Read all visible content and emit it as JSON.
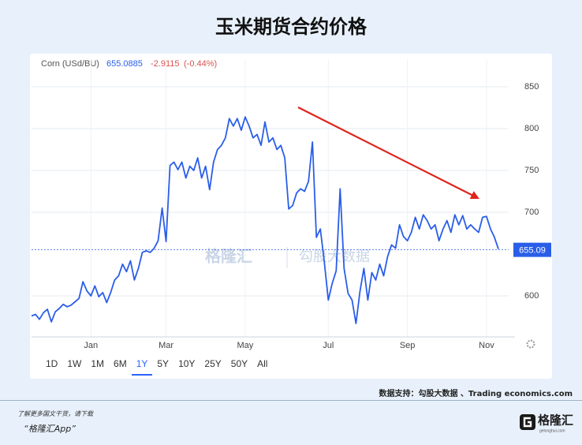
{
  "chart_data": {
    "type": "line",
    "title": "玉米期货合约价格",
    "header": {
      "name": "Corn (USd/BU)",
      "price": 655.0885,
      "change": -2.9115,
      "change_pct": {
        "value": -0.44,
        "label": "(-0.44%)"
      }
    },
    "categories": [
      null,
      null,
      null,
      null,
      null,
      null,
      null,
      null,
      null,
      null,
      null,
      null,
      null,
      null,
      null,
      "Jan",
      null,
      null,
      null,
      null,
      null,
      null,
      null,
      null,
      null,
      null,
      null,
      null,
      null,
      null,
      null,
      null,
      null,
      null,
      "Mar",
      null,
      null,
      null,
      null,
      null,
      null,
      null,
      null,
      null,
      null,
      null,
      null,
      null,
      null,
      null,
      null,
      null,
      null,
      null,
      "May",
      null,
      null,
      null,
      null,
      null,
      null,
      null,
      null,
      null,
      null,
      null,
      null,
      null,
      null,
      null,
      null,
      null,
      null,
      null,
      null,
      "Jul",
      null,
      null,
      null,
      null,
      null,
      null,
      null,
      null,
      null,
      null,
      null,
      null,
      null,
      null,
      null,
      null,
      null,
      null,
      null,
      "Sep",
      null,
      null,
      null,
      null,
      null,
      null,
      null,
      null,
      null,
      null,
      null,
      null,
      null,
      null,
      null,
      null,
      null,
      null,
      null,
      "Nov",
      null,
      null,
      null
    ],
    "values": [
      576,
      578,
      572,
      580,
      584,
      569,
      581,
      585,
      590,
      587,
      589,
      593,
      597,
      617,
      606,
      600,
      612,
      599,
      604,
      592,
      604,
      619,
      624,
      638,
      629,
      642,
      619,
      633,
      652,
      654,
      652,
      657,
      666,
      705,
      665,
      756,
      760,
      751,
      760,
      741,
      755,
      750,
      765,
      741,
      755,
      727,
      760,
      775,
      780,
      789,
      812,
      803,
      812,
      798,
      814,
      803,
      789,
      793,
      780,
      808,
      784,
      789,
      775,
      780,
      765,
      704,
      708,
      723,
      728,
      725,
      737,
      784,
      670,
      680,
      640,
      595,
      615,
      630,
      728,
      633,
      603,
      595,
      567,
      605,
      633,
      595,
      628,
      619,
      638,
      624,
      647,
      661,
      657,
      685,
      671,
      666,
      676,
      694,
      680,
      697,
      690,
      680,
      685,
      666,
      680,
      690,
      676,
      697,
      685,
      696,
      680,
      685,
      680,
      676,
      694,
      695,
      680,
      670,
      656
    ],
    "color": "#2a5ee8",
    "ylim": [
      551,
      883
    ],
    "yticks": [
      600,
      700,
      750,
      800,
      850
    ],
    "grid": true,
    "last_value": 655.09,
    "watermarks": [
      "格隆汇",
      "勾股大数据"
    ],
    "ranges": [
      "1D",
      "1W",
      "1M",
      "6M",
      "1Y",
      "5Y",
      "10Y",
      "25Y",
      "50Y",
      "All"
    ],
    "selected_range_index": 4,
    "source": "数据支持：勾股大数据 、Trading economics.com"
  },
  "footer": {
    "note": "了解更多国文干货，请下载",
    "app": "“格隆汇App”",
    "logo": "格隆汇",
    "logo_url": "gelonghui.com"
  }
}
